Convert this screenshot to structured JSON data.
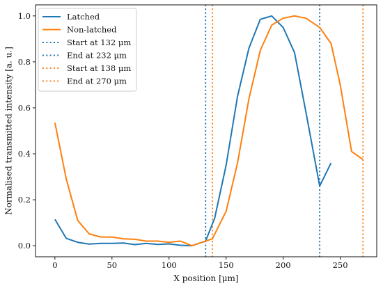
{
  "chart_data": {
    "type": "line",
    "xlabel": "X position [μm]",
    "ylabel": "Normalised transmitted intensity [a. u.]",
    "xlim": [
      -17,
      282
    ],
    "ylim": [
      -0.048,
      1.048
    ],
    "xticks": [
      0,
      50,
      100,
      150,
      200,
      250
    ],
    "yticks": [
      0.0,
      0.2,
      0.4,
      0.6,
      0.8,
      1.0
    ],
    "ytick_labels": [
      "0.0",
      "0.2",
      "0.4",
      "0.6",
      "0.8",
      "1.0"
    ],
    "grid": false,
    "legend_position": "top-left",
    "colors": {
      "blue": "#1f77b4",
      "orange": "#ff7f0e"
    },
    "series": [
      {
        "name": "Latched",
        "color": "#1f77b4",
        "x": [
          0,
          10,
          20,
          30,
          40,
          50,
          60,
          70,
          80,
          90,
          100,
          110,
          120,
          132,
          140,
          150,
          160,
          170,
          180,
          190,
          200,
          210,
          220,
          232,
          242
        ],
        "y": [
          0.115,
          0.032,
          0.015,
          0.007,
          0.01,
          0.01,
          0.012,
          0.005,
          0.01,
          0.006,
          0.008,
          0.002,
          0.0,
          0.02,
          0.12,
          0.35,
          0.65,
          0.86,
          0.985,
          1.0,
          0.95,
          0.84,
          0.58,
          0.26,
          0.36
        ]
      },
      {
        "name": "Non-latched",
        "color": "#ff7f0e",
        "x": [
          0,
          10,
          20,
          30,
          40,
          50,
          60,
          70,
          80,
          90,
          100,
          110,
          120,
          138,
          150,
          160,
          170,
          180,
          190,
          200,
          210,
          220,
          232,
          242,
          250,
          260,
          270
        ],
        "y": [
          0.535,
          0.29,
          0.11,
          0.052,
          0.038,
          0.038,
          0.03,
          0.028,
          0.02,
          0.02,
          0.015,
          0.02,
          0.0,
          0.03,
          0.15,
          0.36,
          0.64,
          0.85,
          0.96,
          0.99,
          1.0,
          0.99,
          0.95,
          0.88,
          0.7,
          0.41,
          0.375
        ]
      }
    ],
    "vlines": [
      {
        "name": "Start at 132 μm",
        "x": 132,
        "color": "#1f77b4"
      },
      {
        "name": "End at 232 μm",
        "x": 232,
        "color": "#1f77b4"
      },
      {
        "name": "Start at 138 μm",
        "x": 138,
        "color": "#ff7f0e"
      },
      {
        "name": "End at 270 μm",
        "x": 270,
        "color": "#ff7f0e"
      }
    ]
  }
}
